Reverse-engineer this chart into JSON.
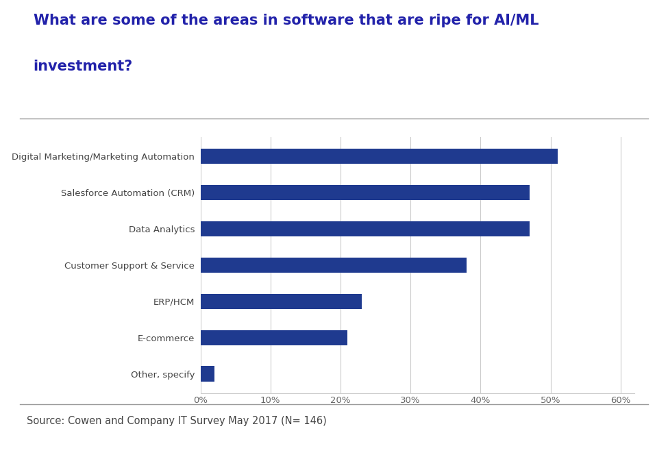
{
  "title_line1": "What are some of the areas in software that are ripe for AI/ML",
  "title_line2": "investment?",
  "title_color": "#2222AA",
  "title_fontsize": 15,
  "categories": [
    "Digital Marketing/Marketing Automation",
    "Salesforce Automation (CRM)",
    "Data Analytics",
    "Customer Support & Service",
    "ERP/HCM",
    "E-commerce",
    "Other, specify"
  ],
  "values": [
    0.51,
    0.47,
    0.47,
    0.38,
    0.23,
    0.21,
    0.02
  ],
  "bar_color": "#1F3A8F",
  "bar_height": 0.42,
  "xlim": [
    0,
    0.62
  ],
  "xticks": [
    0.0,
    0.1,
    0.2,
    0.3,
    0.4,
    0.5,
    0.6
  ],
  "xtick_labels": [
    "0%",
    "10%",
    "20%",
    "30%",
    "40%",
    "50%",
    "60%"
  ],
  "source_text": "Source: Cowen and Company IT Survey May 2017 (N= 146)",
  "source_fontsize": 10.5,
  "background_color": "#FFFFFF",
  "label_color": "#444444",
  "label_fontsize": 9.5,
  "grid_color": "#CCCCCC",
  "tick_color": "#666666",
  "separator_color": "#999999"
}
